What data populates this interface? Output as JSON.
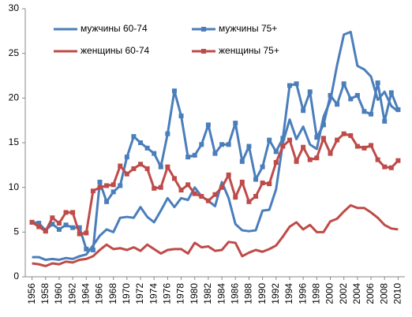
{
  "chart_data": {
    "type": "line",
    "x": [
      1956,
      1957,
      1958,
      1959,
      1960,
      1961,
      1962,
      1963,
      1964,
      1965,
      1966,
      1967,
      1968,
      1969,
      1970,
      1971,
      1972,
      1973,
      1974,
      1975,
      1976,
      1977,
      1978,
      1979,
      1980,
      1981,
      1982,
      1983,
      1984,
      1985,
      1986,
      1987,
      1988,
      1989,
      1990,
      1991,
      1992,
      1993,
      1994,
      1995,
      1996,
      1997,
      1998,
      1999,
      2000,
      2001,
      2002,
      2003,
      2004,
      2005,
      2006,
      2007,
      2008,
      2009,
      2010
    ],
    "xlim": [
      1955,
      2011
    ],
    "xticks": [
      1956,
      1958,
      1960,
      1962,
      1964,
      1966,
      1968,
      1970,
      1972,
      1974,
      1976,
      1978,
      1980,
      1982,
      1984,
      1986,
      1988,
      1990,
      1992,
      1994,
      1996,
      1998,
      2000,
      2002,
      2004,
      2006,
      2008,
      2010
    ],
    "ylim": [
      0,
      30
    ],
    "yticks": [
      0,
      5,
      10,
      15,
      20,
      25,
      30
    ],
    "grid": false,
    "legend": "top-left",
    "series": [
      {
        "name": "мужчины 60-74",
        "color": "#4a7ebb",
        "marker": "none",
        "values": [
          2.2,
          2.2,
          1.9,
          2.0,
          1.9,
          2.1,
          2.0,
          2.3,
          2.5,
          3.5,
          4.6,
          5.3,
          5.0,
          6.6,
          6.7,
          6.6,
          7.8,
          6.7,
          6.1,
          7.4,
          8.8,
          7.8,
          8.8,
          8.6,
          10.0,
          9.0,
          8.5,
          7.9,
          10.6,
          8.8,
          5.9,
          5.2,
          5.1,
          5.2,
          7.4,
          7.5,
          9.8,
          15.0,
          17.6,
          15.4,
          16.8,
          14.8,
          14.3,
          17.9,
          19.7,
          23.7,
          27.1,
          27.4,
          23.6,
          23.2,
          22.4,
          19.8,
          20.7,
          19.1,
          18.5
        ]
      },
      {
        "name": "мужчины 75+",
        "color": "#4a7ebb",
        "marker": "square",
        "values": [
          6.1,
          6.0,
          5.2,
          5.9,
          5.3,
          5.8,
          5.5,
          5.5,
          3.1,
          3.0,
          10.6,
          8.4,
          9.5,
          10.2,
          13.4,
          15.7,
          15.0,
          14.4,
          13.8,
          12.3,
          16.0,
          20.8,
          18.0,
          13.4,
          13.6,
          14.8,
          17.0,
          13.8,
          14.8,
          14.8,
          17.2,
          12.9,
          14.6,
          10.9,
          12.3,
          15.3,
          14.0,
          15.5,
          21.4,
          21.6,
          18.6,
          20.7,
          15.6,
          17.0,
          20.3,
          19.3,
          21.6,
          19.9,
          20.3,
          18.5,
          18.2,
          21.7,
          17.4,
          20.6,
          18.7
        ]
      },
      {
        "name": "женщины 60-74",
        "color": "#be4b48",
        "marker": "none",
        "values": [
          1.5,
          1.4,
          1.2,
          1.5,
          1.4,
          1.7,
          1.6,
          1.9,
          2.0,
          2.3,
          3.0,
          3.6,
          3.1,
          3.2,
          3.0,
          3.3,
          2.9,
          3.6,
          3.1,
          2.6,
          3.0,
          3.1,
          3.1,
          2.6,
          3.8,
          3.3,
          3.4,
          2.9,
          3.0,
          3.9,
          3.8,
          2.3,
          2.7,
          3.0,
          2.8,
          3.1,
          3.5,
          4.5,
          5.6,
          6.1,
          5.3,
          5.8,
          5.0,
          5.0,
          6.2,
          6.5,
          7.3,
          8.0,
          7.7,
          7.7,
          7.2,
          6.6,
          5.8,
          5.4,
          5.3
        ]
      },
      {
        "name": "женщины 75+",
        "color": "#be4b48",
        "marker": "square",
        "values": [
          6.1,
          5.6,
          5.1,
          6.6,
          6.0,
          7.2,
          7.2,
          4.8,
          4.9,
          9.6,
          10.0,
          10.2,
          10.3,
          12.4,
          11.5,
          12.1,
          12.6,
          12.1,
          9.9,
          10.0,
          12.3,
          11.0,
          9.7,
          10.3,
          9.3,
          9.0,
          8.5,
          9.2,
          10.0,
          11.4,
          8.9,
          10.6,
          8.4,
          9.0,
          10.5,
          10.4,
          12.8,
          14.6,
          15.3,
          12.9,
          14.5,
          13.1,
          13.3,
          15.5,
          13.8,
          15.3,
          16.0,
          15.8,
          14.6,
          14.4,
          14.7,
          13.1,
          12.3,
          12.2,
          13.0
        ]
      }
    ]
  }
}
